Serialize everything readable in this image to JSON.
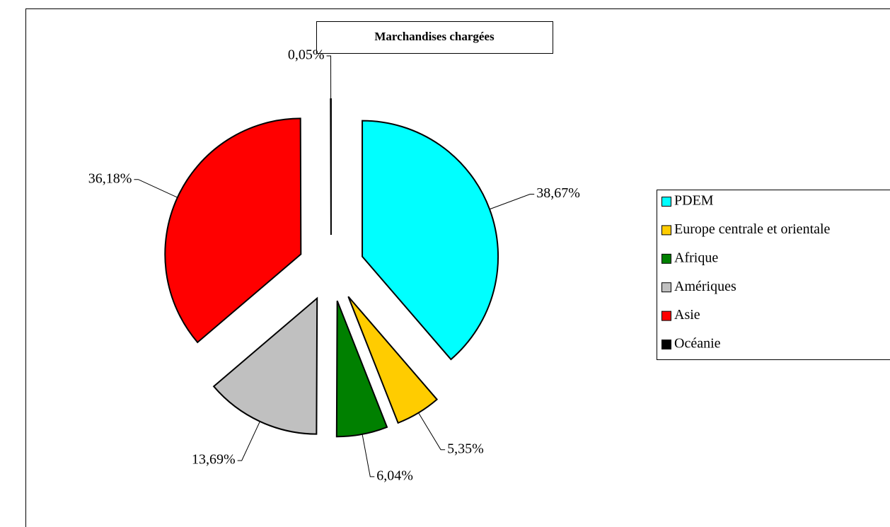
{
  "chart_data": {
    "type": "pie",
    "title": "Marchandises chargées",
    "categories": [
      "PDEM",
      "Europe centrale et orientale",
      "Afrique",
      "Amériques",
      "Asie",
      "Océanie"
    ],
    "values": [
      38.67,
      5.35,
      6.04,
      13.69,
      36.18,
      0.05
    ],
    "value_labels": [
      "38,67%",
      "5,35%",
      "6,04%",
      "13,69%",
      "36,18%",
      "0,05%"
    ],
    "colors": [
      "#00ffff",
      "#ffcc00",
      "#008000",
      "#c0c0c0",
      "#ff0000",
      "#000000"
    ],
    "legend": "right"
  }
}
